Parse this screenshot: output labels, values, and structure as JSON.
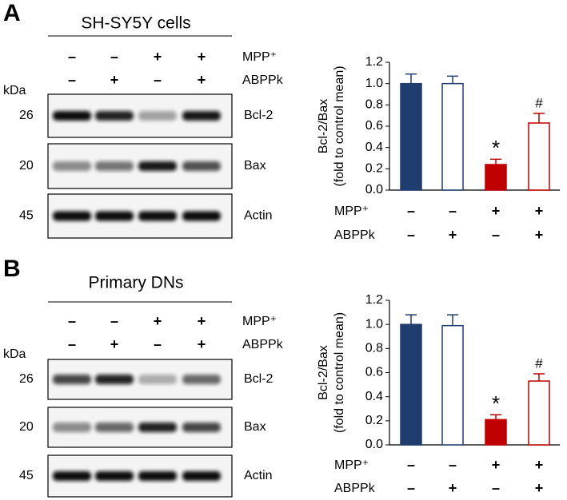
{
  "panels": [
    {
      "letter": "A",
      "title": "SH-SY5Y cells",
      "unit": "kDa",
      "treatments": [
        {
          "name": "MPP⁺",
          "signs": [
            "–",
            "–",
            "+",
            "+"
          ]
        },
        {
          "name": "ABPPk",
          "signs": [
            "–",
            "+",
            "–",
            "+"
          ]
        }
      ],
      "blots": [
        {
          "kda": "26",
          "label": "Bcl-2"
        },
        {
          "kda": "20",
          "label": "Bax"
        },
        {
          "kda": "45",
          "label": "Actin"
        }
      ]
    },
    {
      "letter": "B",
      "title": "Primary DNs",
      "unit": "kDa",
      "treatments": [
        {
          "name": "MPP⁺",
          "signs": [
            "–",
            "–",
            "+",
            "+"
          ]
        },
        {
          "name": "ABPPk",
          "signs": [
            "–",
            "+",
            "–",
            "+"
          ]
        }
      ],
      "blots": [
        {
          "kda": "26",
          "label": "Bcl-2"
        },
        {
          "kda": "20",
          "label": "Bax"
        },
        {
          "kda": "45",
          "label": "Actin"
        }
      ]
    }
  ],
  "chart_data": [
    {
      "type": "bar",
      "ylabel": [
        "Bcl-2/Bax",
        "(fold to control mean)"
      ],
      "values": [
        1.0,
        1.0,
        0.24,
        0.63
      ],
      "errors": [
        0.09,
        0.07,
        0.05,
        0.09
      ],
      "colors": [
        "#1f3d6e",
        "#ffffff",
        "#c00000",
        "#ffffff"
      ],
      "edgecolors": [
        "#1f3d6e",
        "#1f3d6e",
        "#c00000",
        "#c00000"
      ],
      "value_annotations": [
        null,
        null,
        "*",
        "#"
      ],
      "treatments": [
        {
          "name": "MPP⁺",
          "signs": [
            "–",
            "–",
            "+",
            "+"
          ]
        },
        {
          "name": "ABPPk",
          "signs": [
            "–",
            "+",
            "–",
            "+"
          ]
        }
      ],
      "ylim": [
        0,
        1.2
      ],
      "yticks": [
        {
          "value": 0,
          "label": "0.0"
        },
        0.2,
        0.4,
        0.6,
        0.8,
        {
          "value": 1,
          "label": "1.0"
        },
        1.2
      ]
    },
    {
      "type": "bar",
      "ylabel": [
        "Bcl-2/Bax",
        "(fold to control mean)"
      ],
      "values": [
        1.0,
        0.99,
        0.21,
        0.53
      ],
      "errors": [
        0.08,
        0.09,
        0.04,
        0.06
      ],
      "colors": [
        "#1f3d6e",
        "#ffffff",
        "#c00000",
        "#ffffff"
      ],
      "edgecolors": [
        "#1f3d6e",
        "#1f3d6e",
        "#c00000",
        "#c00000"
      ],
      "value_annotations": [
        null,
        null,
        "*",
        "#"
      ],
      "treatments": [
        {
          "name": "MPP⁺",
          "signs": [
            "–",
            "–",
            "+",
            "+"
          ]
        },
        {
          "name": "ABPPk",
          "signs": [
            "–",
            "+",
            "–",
            "+"
          ]
        }
      ],
      "ylim": [
        0,
        1.2
      ],
      "yticks": [
        {
          "value": 0,
          "label": "0.0"
        },
        0.2,
        0.4,
        0.6,
        0.8,
        {
          "value": 1,
          "label": "1.0"
        },
        1.2
      ]
    }
  ]
}
